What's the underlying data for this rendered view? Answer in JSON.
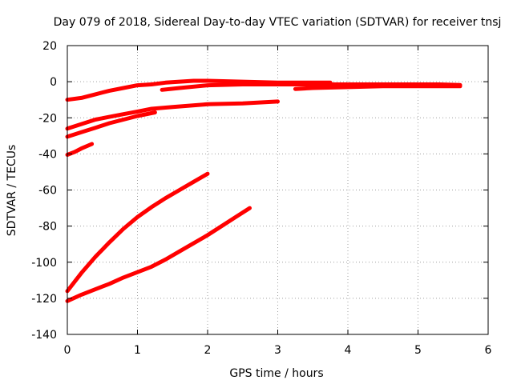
{
  "chart_data": {
    "type": "line",
    "title": "Day 079 of 2018, Sidereal Day-to-day VTEC variation (SDTVAR) for receiver tnsj",
    "xlabel": "GPS time / hours",
    "ylabel": "SDTVAR / TECUs",
    "xlim": [
      0,
      6
    ],
    "ylim": [
      -140,
      20
    ],
    "xticks": [
      0,
      1,
      2,
      3,
      4,
      5,
      6
    ],
    "yticks": [
      -140,
      -120,
      -100,
      -80,
      -60,
      -40,
      -20,
      0,
      20
    ],
    "grid": true,
    "legend": "none",
    "series_color": "#ff0000",
    "series": [
      {
        "x": [
          0.0,
          0.2,
          0.4,
          0.6,
          0.8,
          1.0,
          1.2,
          1.4,
          1.6,
          1.8,
          2.0,
          2.5,
          3.0,
          3.5,
          3.75
        ],
        "y": [
          -10,
          -9,
          -7,
          -5,
          -3.5,
          -2,
          -1.5,
          -0.5,
          0,
          0.5,
          0.5,
          0,
          -0.5,
          -0.5,
          -0.5
        ]
      },
      {
        "x": [
          1.35,
          1.6,
          2.0,
          2.5,
          3.0,
          3.5,
          4.0,
          4.5,
          5.0,
          5.3,
          5.6
        ],
        "y": [
          -4.5,
          -3.5,
          -2,
          -1.5,
          -1.5,
          -1.5,
          -1.5,
          -1.5,
          -1.5,
          -1.5,
          -1.8
        ]
      },
      {
        "x": [
          3.25,
          3.5,
          4.0,
          4.5,
          5.0,
          5.5,
          5.6
        ],
        "y": [
          -4,
          -3.5,
          -3,
          -2.5,
          -2.5,
          -2.5,
          -2.5
        ]
      },
      {
        "x": [
          0.0,
          0.2,
          0.4,
          0.6,
          0.8,
          1.0,
          1.2,
          1.5,
          2.0,
          2.5,
          3.0
        ],
        "y": [
          -26,
          -23.5,
          -21,
          -19.5,
          -18,
          -16.5,
          -15,
          -14,
          -12.5,
          -12,
          -11
        ]
      },
      {
        "x": [
          0.0,
          0.2,
          0.4,
          0.6,
          0.8,
          1.0,
          1.25
        ],
        "y": [
          -30.5,
          -28,
          -25.5,
          -23,
          -21,
          -19,
          -17
        ]
      },
      {
        "x": [
          0.0,
          0.1,
          0.2,
          0.35
        ],
        "y": [
          -40.5,
          -39,
          -37,
          -34.5
        ]
      },
      {
        "x": [
          0.0,
          0.2,
          0.4,
          0.6,
          0.8,
          1.0,
          1.2,
          1.4,
          1.6,
          1.8,
          2.0
        ],
        "y": [
          -116,
          -106,
          -97,
          -89,
          -81.5,
          -75,
          -69.5,
          -64.5,
          -60,
          -55.5,
          -51
        ]
      },
      {
        "x": [
          0.0,
          0.2,
          0.4,
          0.6,
          0.8,
          1.0,
          1.2,
          1.4,
          1.6,
          1.8,
          2.0,
          2.2,
          2.4,
          2.6
        ],
        "y": [
          -121.5,
          -118,
          -115,
          -112,
          -108.5,
          -105.5,
          -102.5,
          -98.5,
          -94,
          -89.5,
          -85,
          -80,
          -75,
          -70
        ]
      }
    ]
  }
}
